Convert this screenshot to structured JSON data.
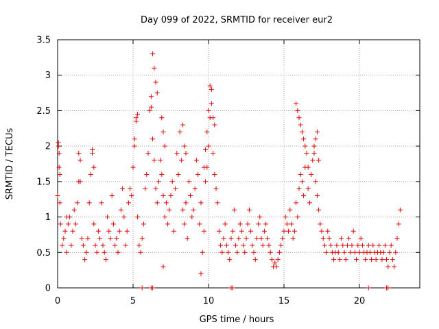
{
  "chart_data": {
    "type": "scatter",
    "title": "Day 099 of 2022, SRMTID for receiver eur2",
    "xlabel": "GPS time / hours",
    "ylabel": "SRMTID / TECUs",
    "xlim": [
      0,
      24
    ],
    "ylim": [
      0,
      3.5
    ],
    "grid": true,
    "x_ticks": [
      0,
      5,
      10,
      15,
      20
    ],
    "x_tick_labels": [
      "0",
      "5",
      "10",
      "15",
      "20"
    ],
    "y_ticks": [
      0,
      0.5,
      1,
      1.5,
      2,
      2.5,
      3,
      3.5
    ],
    "y_tick_labels": [
      "0",
      "0.5",
      "1",
      "1.5",
      "2",
      "2.5",
      "3",
      "3.5"
    ],
    "marker": "plus",
    "color": "#e00000",
    "series": [
      {
        "name": "SRMTID",
        "x": [
          0.0,
          0.05,
          0.1,
          0.15,
          0.2,
          0.3,
          0.4,
          0.5,
          0.6,
          0.7,
          0.8,
          0.9,
          1.0,
          1.1,
          1.2,
          1.3,
          1.4,
          1.5,
          1.6,
          1.7,
          1.8,
          1.9,
          2.0,
          2.1,
          2.2,
          2.3,
          2.4,
          2.5,
          2.6,
          2.7,
          2.8,
          2.9,
          3.0,
          3.1,
          3.2,
          3.3,
          3.4,
          3.5,
          3.6,
          3.7,
          3.8,
          3.9,
          4.0,
          4.1,
          4.2,
          4.3,
          4.4,
          4.5,
          4.6,
          4.7,
          4.8,
          4.9,
          5.0,
          5.1,
          5.2,
          5.3,
          5.4,
          5.5,
          5.6,
          5.7,
          5.8,
          5.9,
          6.0,
          6.1,
          6.2,
          6.3,
          6.4,
          6.5,
          6.6,
          6.7,
          6.8,
          6.9,
          7.0,
          7.1,
          7.2,
          7.3,
          7.4,
          7.5,
          7.6,
          7.7,
          7.8,
          7.9,
          8.0,
          8.1,
          8.2,
          8.3,
          8.4,
          8.5,
          8.6,
          8.7,
          8.8,
          8.9,
          9.0,
          9.1,
          9.2,
          9.3,
          9.4,
          9.5,
          9.6,
          9.7,
          9.8,
          9.9,
          10.0,
          10.1,
          10.2,
          10.3,
          10.4,
          10.5,
          10.6,
          10.7,
          10.8,
          10.9,
          11.0,
          11.1,
          11.2,
          11.3,
          11.4,
          11.5,
          11.6,
          11.7,
          11.8,
          11.9,
          12.0,
          12.1,
          12.2,
          12.3,
          12.4,
          12.5,
          12.6,
          12.7,
          12.8,
          12.9,
          13.0,
          13.1,
          13.2,
          13.3,
          13.4,
          13.5,
          13.6,
          13.7,
          13.8,
          13.9,
          14.0,
          14.1,
          14.2,
          14.3,
          14.4,
          14.5,
          14.6,
          14.7,
          14.8,
          14.9,
          15.0,
          15.1,
          15.2,
          15.3,
          15.4,
          15.5,
          15.6,
          15.7,
          15.8,
          15.9,
          16.0,
          16.1,
          16.2,
          16.3,
          16.4,
          16.5,
          16.6,
          16.7,
          16.8,
          16.9,
          17.0,
          17.1,
          17.2,
          17.3,
          17.4,
          17.5,
          17.6,
          17.7,
          17.8,
          17.9,
          18.0,
          18.1,
          18.2,
          18.3,
          18.4,
          18.5,
          18.6,
          18.7,
          18.8,
          18.9,
          19.0,
          19.1,
          19.2,
          19.3,
          19.4,
          19.5,
          19.6,
          19.7,
          19.8,
          19.9,
          20.0,
          20.1,
          20.2,
          20.3,
          20.4,
          20.5,
          20.6,
          20.7,
          20.8,
          20.9,
          21.0,
          21.1,
          21.2,
          21.3,
          21.4,
          21.5,
          21.6,
          21.7,
          21.8,
          21.9,
          22.0,
          22.1,
          22.2,
          22.3,
          22.4,
          22.5,
          22.6,
          22.7,
          0.05,
          0.1,
          0.15,
          0.6,
          1.4,
          1.5,
          2.3,
          2.4,
          5.1,
          5.2,
          5.3,
          6.2,
          6.3,
          6.4,
          6.5,
          6.6,
          6.9,
          7.0,
          7.1,
          8.3,
          8.4,
          8.5,
          9.7,
          9.8,
          9.9,
          10.0,
          10.1,
          10.2,
          10.3,
          10.4,
          15.8,
          15.9,
          16.0,
          16.1,
          16.2,
          16.3,
          16.4,
          16.5,
          16.6,
          17.0,
          17.1,
          17.2,
          17.3,
          5.6,
          6.3,
          6.2,
          7.0,
          9.5,
          11.5,
          11.6,
          20.6,
          21.8,
          21.9
        ],
        "y": [
          1.3,
          2.0,
          1.7,
          1.2,
          0.9,
          0.6,
          0.7,
          0.8,
          0.5,
          0.9,
          1.0,
          0.6,
          0.8,
          1.1,
          0.9,
          1.2,
          1.5,
          1.8,
          0.7,
          0.6,
          0.4,
          0.5,
          0.7,
          1.2,
          1.6,
          1.9,
          0.9,
          0.6,
          0.5,
          0.8,
          0.7,
          1.2,
          0.6,
          0.5,
          0.4,
          1.0,
          0.8,
          0.7,
          1.3,
          0.9,
          0.6,
          0.7,
          0.5,
          0.8,
          1.1,
          1.4,
          1.0,
          0.6,
          0.8,
          1.2,
          1.4,
          1.3,
          1.7,
          2.0,
          2.4,
          1.0,
          0.6,
          0.5,
          0.7,
          0.9,
          1.4,
          1.6,
          1.9,
          2.5,
          2.7,
          2.1,
          1.8,
          1.4,
          1.2,
          1.5,
          1.8,
          1.6,
          1.3,
          1.0,
          1.2,
          0.9,
          1.1,
          1.3,
          1.5,
          0.8,
          1.4,
          1.9,
          1.6,
          2.2,
          1.8,
          1.1,
          0.9,
          1.2,
          0.7,
          1.5,
          1.3,
          1.0,
          1.1,
          1.4,
          1.8,
          1.6,
          0.9,
          1.2,
          0.5,
          0.8,
          1.5,
          1.7,
          2.0,
          2.4,
          2.8,
          1.9,
          1.6,
          1.4,
          1.2,
          0.8,
          0.6,
          0.5,
          0.7,
          0.9,
          0.6,
          0.5,
          0.4,
          0.7,
          0.8,
          1.1,
          0.6,
          0.5,
          0.7,
          0.9,
          0.8,
          0.6,
          0.5,
          0.7,
          0.9,
          1.1,
          0.8,
          0.6,
          0.5,
          0.4,
          0.7,
          0.9,
          1.0,
          0.7,
          0.6,
          0.8,
          0.9,
          0.7,
          0.6,
          0.5,
          0.4,
          0.3,
          0.35,
          0.3,
          0.4,
          0.5,
          0.6,
          0.7,
          0.8,
          1.0,
          0.9,
          0.8,
          1.1,
          0.9,
          0.7,
          0.8,
          1.2,
          1.0,
          1.4,
          1.6,
          1.5,
          1.3,
          1.7,
          1.9,
          1.4,
          1.2,
          1.6,
          1.8,
          2.0,
          1.5,
          1.3,
          1.1,
          0.9,
          0.8,
          0.7,
          0.6,
          0.5,
          0.8,
          0.7,
          0.6,
          0.5,
          0.4,
          0.5,
          0.6,
          0.5,
          0.4,
          0.7,
          0.6,
          0.5,
          0.4,
          0.6,
          0.7,
          0.5,
          0.6,
          0.8,
          0.5,
          0.4,
          0.6,
          0.5,
          0.7,
          0.6,
          0.5,
          0.4,
          0.5,
          0.6,
          0.5,
          0.4,
          0.6,
          0.5,
          0.4,
          0.5,
          0.6,
          0.5,
          0.4,
          0.5,
          0.6,
          0.4,
          0.3,
          0.5,
          0.6,
          0.4,
          0.3,
          0.5,
          0.7,
          0.9,
          1.1,
          2.05,
          1.9,
          1.6,
          1.0,
          1.9,
          1.5,
          1.95,
          1.7,
          2.1,
          2.35,
          2.45,
          2.55,
          3.3,
          3.1,
          2.9,
          2.75,
          2.4,
          2.2,
          2.0,
          2.3,
          2.0,
          1.9,
          1.7,
          1.95,
          2.2,
          2.5,
          2.85,
          2.6,
          2.4,
          2.3,
          2.6,
          2.5,
          2.4,
          2.3,
          2.2,
          2.1,
          2.0,
          1.9,
          1.7,
          1.9,
          2.1,
          2.2,
          1.8,
          0.0,
          0.0,
          0.0,
          0.3,
          0.2,
          0.0,
          0.0,
          0.0,
          0.0,
          0.0
        ]
      }
    ],
    "footnote": ""
  }
}
